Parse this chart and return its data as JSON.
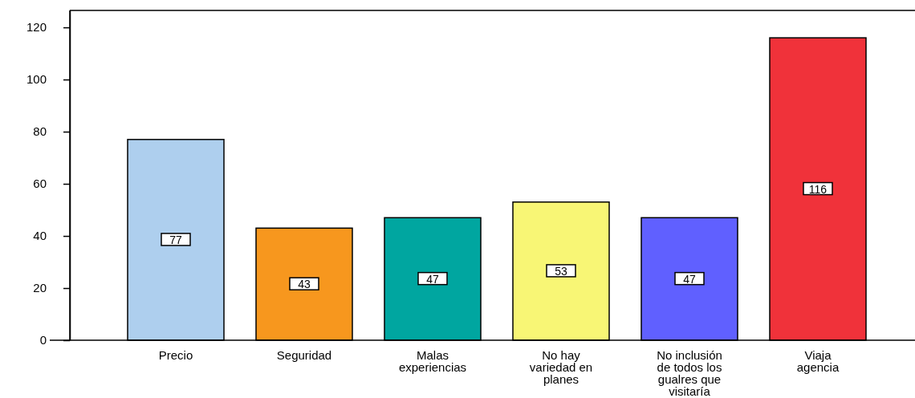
{
  "chart_data": {
    "type": "bar",
    "categories": [
      "Precio",
      "Seguridad",
      "Malas experiencias",
      "No hay variedad en planes",
      "No inclusión de todos los gualres que visitaría",
      "Viaja agencia"
    ],
    "values": [
      77,
      43,
      47,
      53,
      47,
      116
    ],
    "colors": [
      "#aecfee",
      "#f7971e",
      "#00a6a0",
      "#f8f675",
      "#6060ff",
      "#f0323a"
    ],
    "ylim": [
      0,
      126.5
    ],
    "yticks": [
      0,
      20,
      40,
      60,
      80,
      100,
      120
    ],
    "data_labels": true,
    "grid": false
  }
}
